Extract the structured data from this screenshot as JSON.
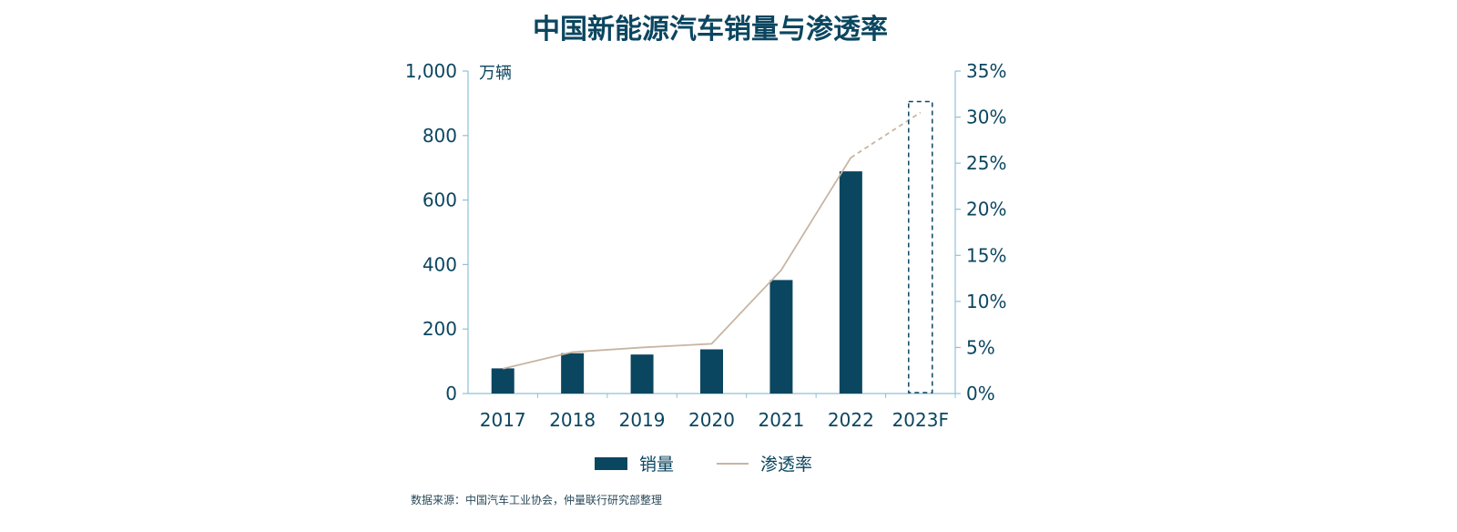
{
  "chart_data": {
    "type": "bar",
    "title": "中国新能源汽车销量与渗透率",
    "categories": [
      "2017",
      "2018",
      "2019",
      "2020",
      "2021",
      "2022",
      "2023F"
    ],
    "series": [
      {
        "name": "销量",
        "type": "bar",
        "axis": "left",
        "color": "#0b4660",
        "values": [
          78,
          125,
          121,
          137,
          352,
          689,
          null
        ]
      },
      {
        "name": "渗透率",
        "type": "line",
        "axis": "right",
        "color": "#c8b5a2",
        "values": [
          2.7,
          4.5,
          5.0,
          5.4,
          13.4,
          25.6,
          30.5
        ],
        "forecast_from_index": 5
      }
    ],
    "left_axis": {
      "unit_label": "万辆",
      "ylim": [
        0,
        1000
      ],
      "ticks": [
        "0",
        "200",
        "400",
        "600",
        "800",
        "1,000"
      ]
    },
    "right_axis": {
      "ylim": [
        0,
        35
      ],
      "ticks": [
        "0%",
        "5%",
        "10%",
        "15%",
        "20%",
        "25%",
        "30%",
        "35%"
      ]
    },
    "forecast_highlight_category": "2023F",
    "legend": {
      "placement": "bottom-center"
    },
    "grid": false,
    "source_note": "数据来源：中国汽车工业协会，仲量联行研究部整理"
  }
}
